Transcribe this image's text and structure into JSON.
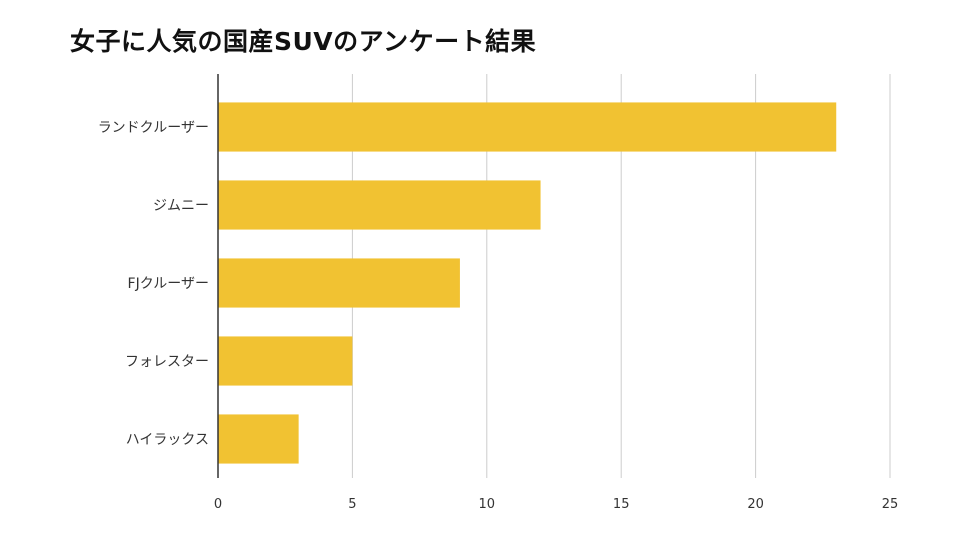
{
  "chart_data": {
    "type": "bar",
    "orientation": "horizontal",
    "title": "女子に人気の国産SUVのアンケート結果",
    "categories": [
      "ランドクルーザー",
      "ジムニー",
      "FJクルーザー",
      "フォレスター",
      "ハイラックス"
    ],
    "values": [
      23,
      12,
      9,
      5,
      3
    ],
    "xlim": [
      0,
      25
    ],
    "xticks": [
      0,
      5,
      10,
      15,
      20,
      25
    ],
    "grid": true,
    "legend": "none",
    "colors": {
      "bar": "#F1C232",
      "grid": "#CCCCCC",
      "axis": "#333333"
    }
  }
}
